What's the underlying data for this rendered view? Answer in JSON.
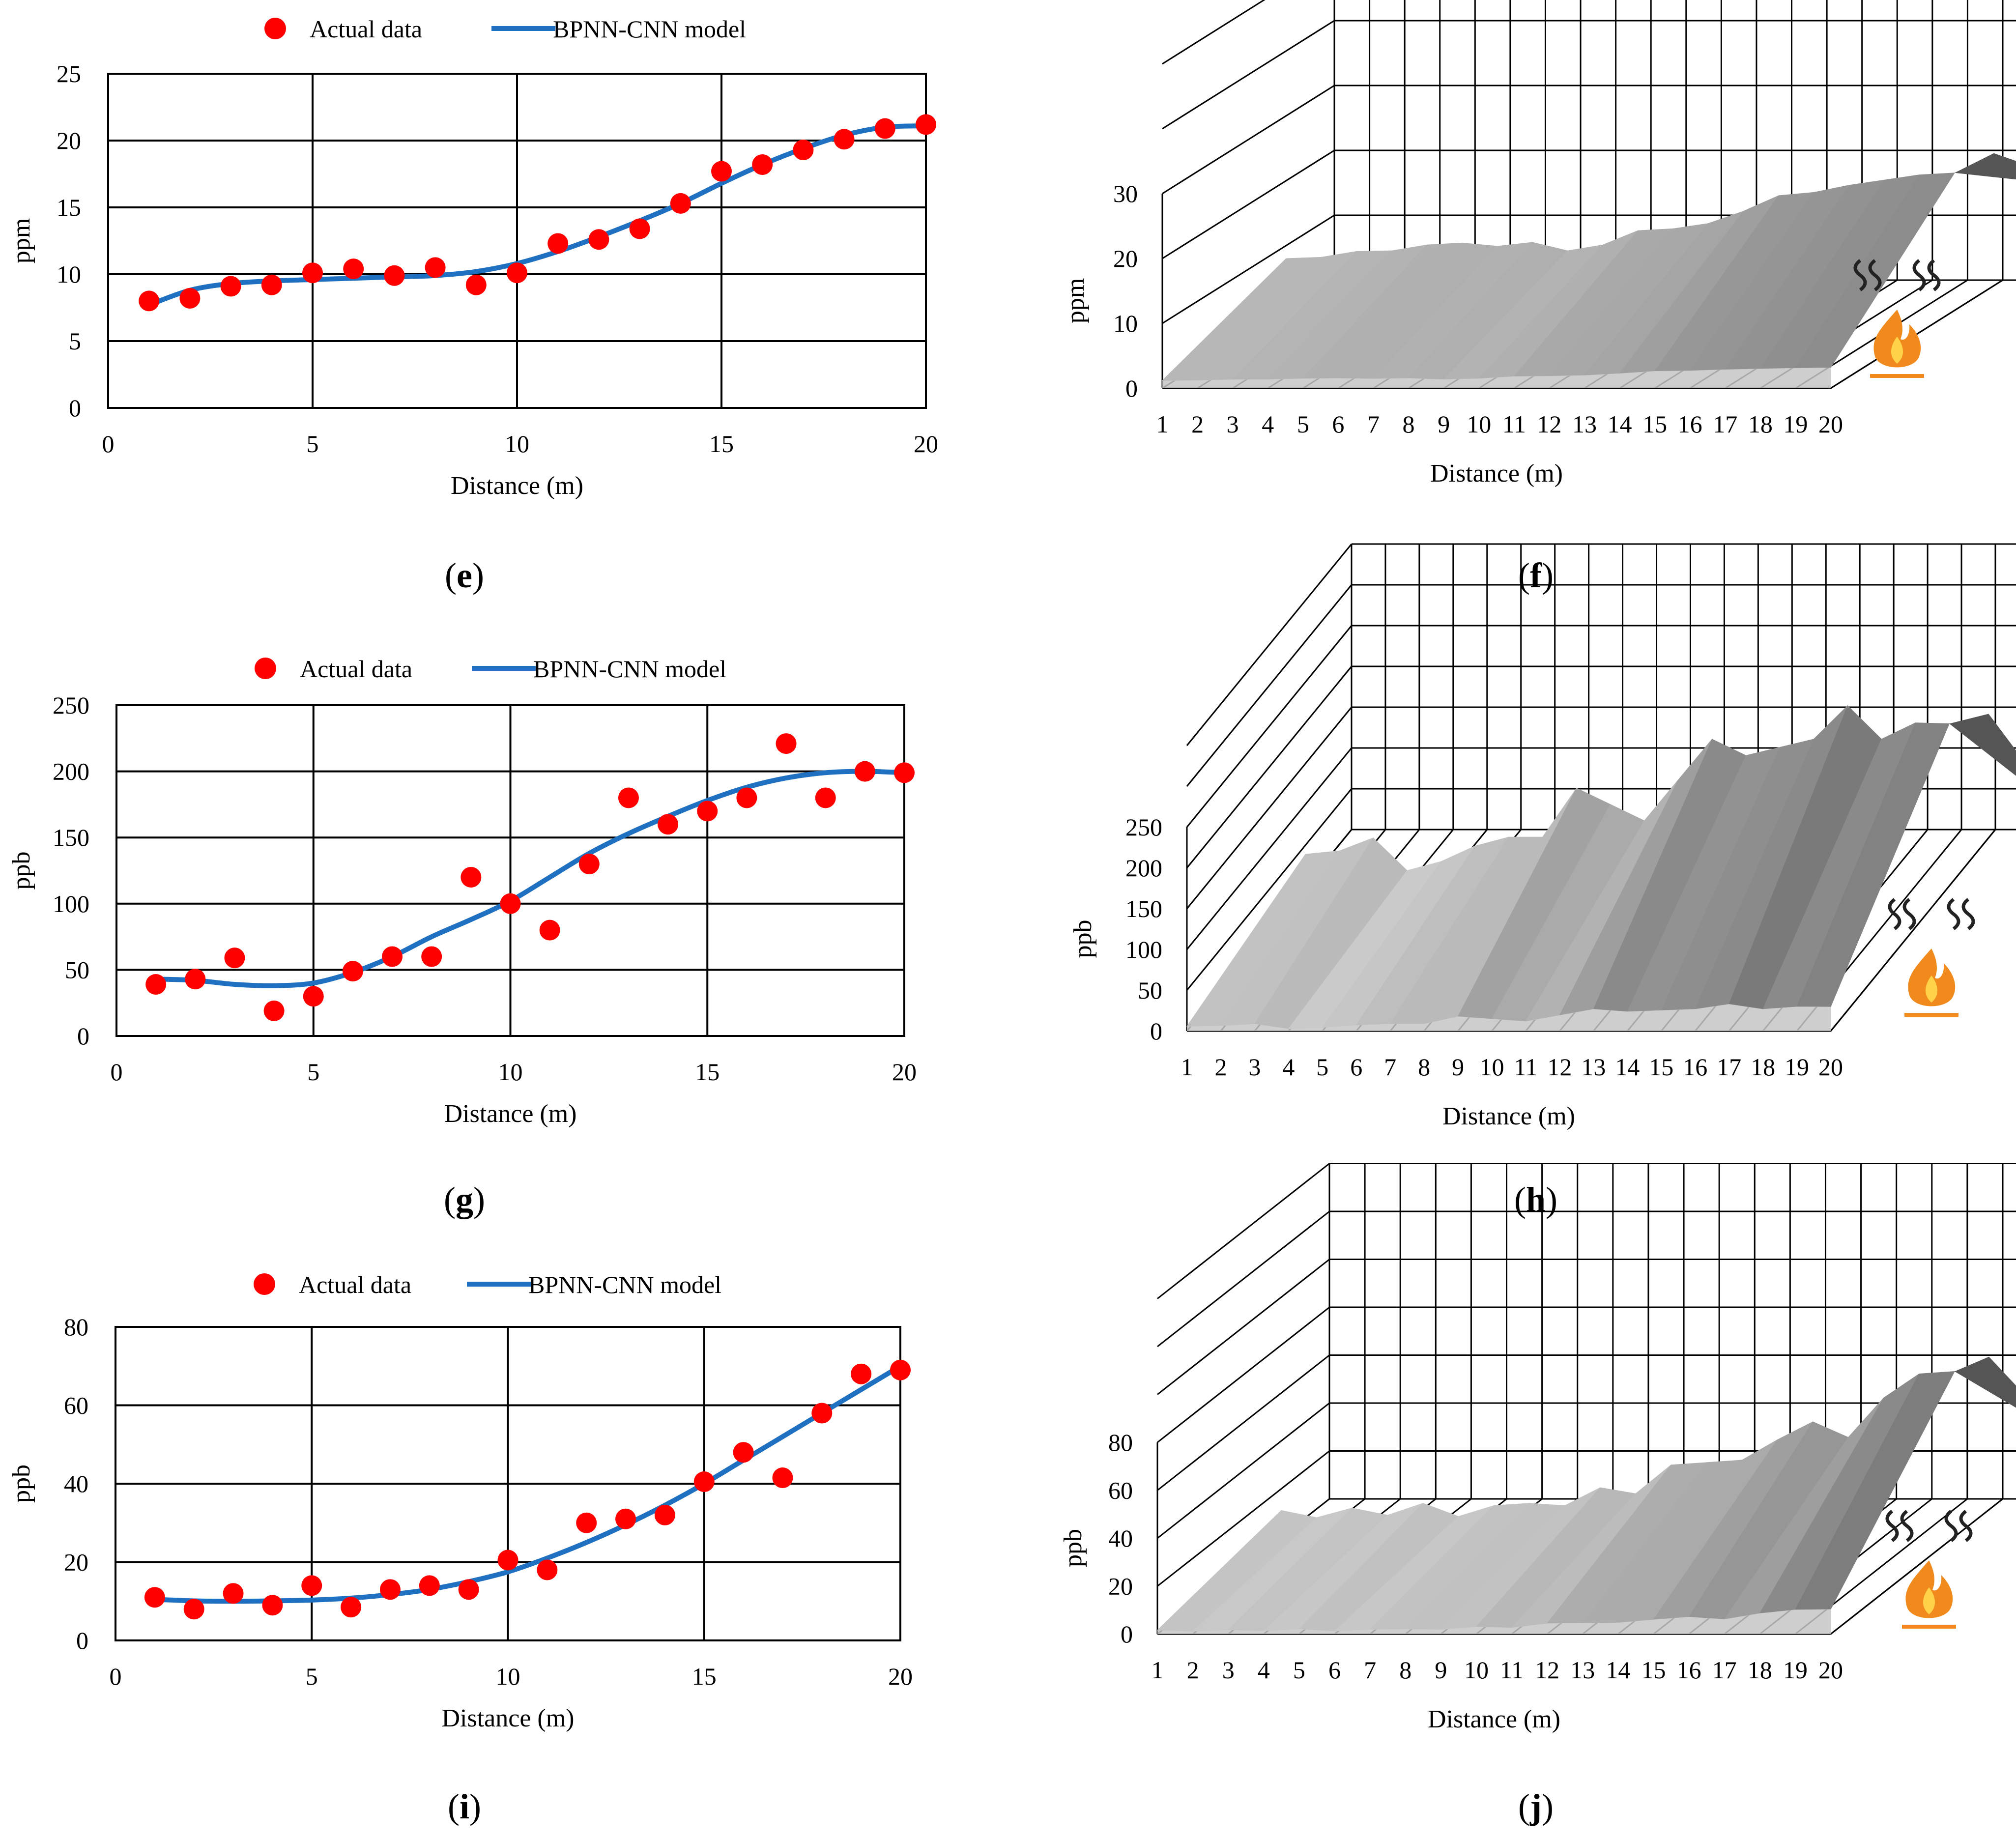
{
  "colors": {
    "actual_marker": "#ff0000",
    "model_line": "#1f70c1",
    "grid": "#000000",
    "surface_light": "#c6c6c6",
    "surface_mid": "#a0a0a0",
    "surface_dark": "#555555",
    "flame": "#f08a1c"
  },
  "icons": {
    "heat_source": "flame-icon",
    "heat_waves": "heat-waves-icon"
  },
  "chart_data": [
    {
      "id": "e",
      "type": "scatter+line",
      "caption": "(e)",
      "caption_letter": "e",
      "title": "",
      "xlabel": "Distance (m)",
      "ylabel": "ppm",
      "xlim": [
        0,
        20
      ],
      "ylim": [
        0,
        25
      ],
      "xticks": [
        "0",
        "5",
        "10",
        "15",
        "20"
      ],
      "yticks": [
        "0",
        "5",
        "10",
        "15",
        "20",
        "25"
      ],
      "legend": {
        "placement": "top-center",
        "entries": [
          "Actual data",
          "BPNN-CNN model"
        ]
      },
      "series": [
        {
          "name": "Actual data",
          "kind": "scatter",
          "x": [
            1,
            2,
            3,
            4,
            5,
            6,
            7,
            8,
            9,
            10,
            11,
            12,
            13,
            14,
            15,
            16,
            17,
            18,
            19,
            20
          ],
          "y": [
            8.0,
            8.2,
            9.1,
            9.2,
            10.1,
            10.4,
            9.9,
            10.5,
            9.2,
            10.1,
            12.3,
            12.6,
            13.4,
            15.3,
            17.7,
            18.2,
            19.3,
            20.1,
            20.9,
            21.2
          ]
        },
        {
          "name": "BPNN-CNN model",
          "kind": "line",
          "x": [
            1,
            2,
            3,
            4,
            5,
            6,
            7,
            8,
            9,
            10,
            11,
            12,
            13,
            14,
            15,
            16,
            17,
            18,
            19,
            20
          ],
          "y": [
            7.7,
            8.8,
            9.3,
            9.5,
            9.6,
            9.7,
            9.8,
            9.9,
            10.2,
            10.8,
            11.7,
            12.8,
            14.0,
            15.3,
            16.8,
            18.2,
            19.4,
            20.4,
            21.0,
            21.1
          ]
        }
      ]
    },
    {
      "id": "f",
      "type": "surface3d",
      "caption": "(f)",
      "caption_letter": "f",
      "xlabel": "Distance (m)",
      "ylabel": "ppm",
      "zlim": [
        0,
        30
      ],
      "zticks": [
        "0",
        "10",
        "20",
        "30"
      ],
      "categories": [
        "1",
        "2",
        "3",
        "4",
        "5",
        "6",
        "7",
        "8",
        "9",
        "10",
        "11",
        "12",
        "13",
        "14",
        "15",
        "16",
        "17",
        "18",
        "19",
        "20"
      ],
      "values": [
        8.0,
        8.2,
        9.1,
        9.2,
        10.1,
        10.4,
        9.9,
        10.5,
        9.2,
        10.1,
        12.3,
        12.6,
        13.4,
        15.3,
        17.7,
        18.2,
        19.3,
        20.1,
        20.9,
        21.2
      ]
    },
    {
      "id": "g",
      "type": "scatter+line",
      "caption": "(g)",
      "caption_letter": "g",
      "title": "",
      "xlabel": "Distance (m)",
      "ylabel": "ppb",
      "xlim": [
        0,
        20
      ],
      "ylim": [
        0,
        250
      ],
      "xticks": [
        "0",
        "5",
        "10",
        "15",
        "20"
      ],
      "yticks": [
        "0",
        "50",
        "100",
        "150",
        "200",
        "250"
      ],
      "legend": {
        "placement": "top-center",
        "entries": [
          "Actual data",
          "BPNN-CNN model"
        ]
      },
      "series": [
        {
          "name": "Actual data",
          "kind": "scatter",
          "x": [
            1,
            2,
            3,
            4,
            5,
            6,
            7,
            8,
            9,
            10,
            11,
            12,
            13,
            14,
            15,
            16,
            17,
            18,
            19,
            20
          ],
          "y": [
            39,
            43,
            59,
            19,
            30,
            49,
            60,
            60,
            120,
            100,
            80,
            130,
            180,
            160,
            170,
            180,
            221,
            180,
            200,
            199
          ]
        },
        {
          "name": "BPNN-CNN model",
          "kind": "line",
          "x": [
            1,
            2,
            3,
            4,
            5,
            6,
            7,
            8,
            9,
            10,
            11,
            12,
            13,
            14,
            15,
            16,
            17,
            18,
            19,
            20
          ],
          "y": [
            43,
            42,
            39,
            38,
            40,
            48,
            60,
            75,
            88,
            102,
            120,
            138,
            153,
            166,
            178,
            188,
            195,
            199,
            200,
            199
          ]
        }
      ]
    },
    {
      "id": "h",
      "type": "surface3d",
      "caption": "(h)",
      "caption_letter": "h",
      "xlabel": "Distance (m)",
      "ylabel": "ppb",
      "zlim": [
        0,
        250
      ],
      "zticks": [
        "0",
        "50",
        "100",
        "150",
        "200",
        "250"
      ],
      "categories": [
        "1",
        "2",
        "3",
        "4",
        "5",
        "6",
        "7",
        "8",
        "9",
        "10",
        "11",
        "12",
        "13",
        "14",
        "15",
        "16",
        "17",
        "18",
        "19",
        "20"
      ],
      "values": [
        39,
        43,
        59,
        19,
        30,
        49,
        60,
        60,
        120,
        100,
        80,
        130,
        180,
        160,
        170,
        180,
        221,
        180,
        200,
        199
      ]
    },
    {
      "id": "i",
      "type": "scatter+line",
      "caption": "(i)",
      "caption_letter": "i",
      "title": "",
      "xlabel": "Distance (m)",
      "ylabel": "ppb",
      "xlim": [
        0,
        20
      ],
      "ylim": [
        0,
        80
      ],
      "xticks": [
        "0",
        "5",
        "10",
        "15",
        "20"
      ],
      "yticks": [
        "0",
        "20",
        "40",
        "60",
        "80"
      ],
      "legend": {
        "placement": "top-center",
        "entries": [
          "Actual data",
          "BPNN-CNN model"
        ]
      },
      "series": [
        {
          "name": "Actual data",
          "kind": "scatter",
          "x": [
            1,
            2,
            3,
            4,
            5,
            6,
            7,
            8,
            9,
            10,
            11,
            12,
            13,
            14,
            15,
            16,
            17,
            18,
            19,
            20
          ],
          "y": [
            11,
            8,
            12,
            9,
            14,
            8.5,
            13,
            14,
            13,
            20.5,
            18,
            30,
            31,
            32,
            40.5,
            48,
            41.5,
            58,
            68,
            69
          ]
        },
        {
          "name": "BPNN-CNN model",
          "kind": "line",
          "x": [
            1,
            2,
            3,
            4,
            5,
            6,
            7,
            8,
            9,
            10,
            11,
            12,
            13,
            14,
            15,
            16,
            17,
            18,
            19,
            20
          ],
          "y": [
            10.5,
            10.1,
            10.0,
            10.1,
            10.3,
            10.8,
            11.7,
            13.0,
            15.0,
            17.5,
            21.0,
            25.0,
            29.5,
            34.5,
            40.0,
            46.0,
            52.0,
            58.0,
            64.0,
            70.0
          ]
        }
      ]
    },
    {
      "id": "j",
      "type": "surface3d",
      "caption": "(j)",
      "caption_letter": "j",
      "xlabel": "Distance (m)",
      "ylabel": "ppb",
      "zlim": [
        0,
        80
      ],
      "zticks": [
        "0",
        "20",
        "40",
        "60",
        "80"
      ],
      "categories": [
        "1",
        "2",
        "3",
        "4",
        "5",
        "6",
        "7",
        "8",
        "9",
        "10",
        "11",
        "12",
        "13",
        "14",
        "15",
        "16",
        "17",
        "18",
        "19",
        "20"
      ],
      "values": [
        11,
        8,
        12,
        9,
        14,
        8.5,
        13,
        14,
        13,
        20.5,
        18,
        30,
        31,
        32,
        40.5,
        48,
        41.5,
        58,
        68,
        69
      ]
    }
  ]
}
